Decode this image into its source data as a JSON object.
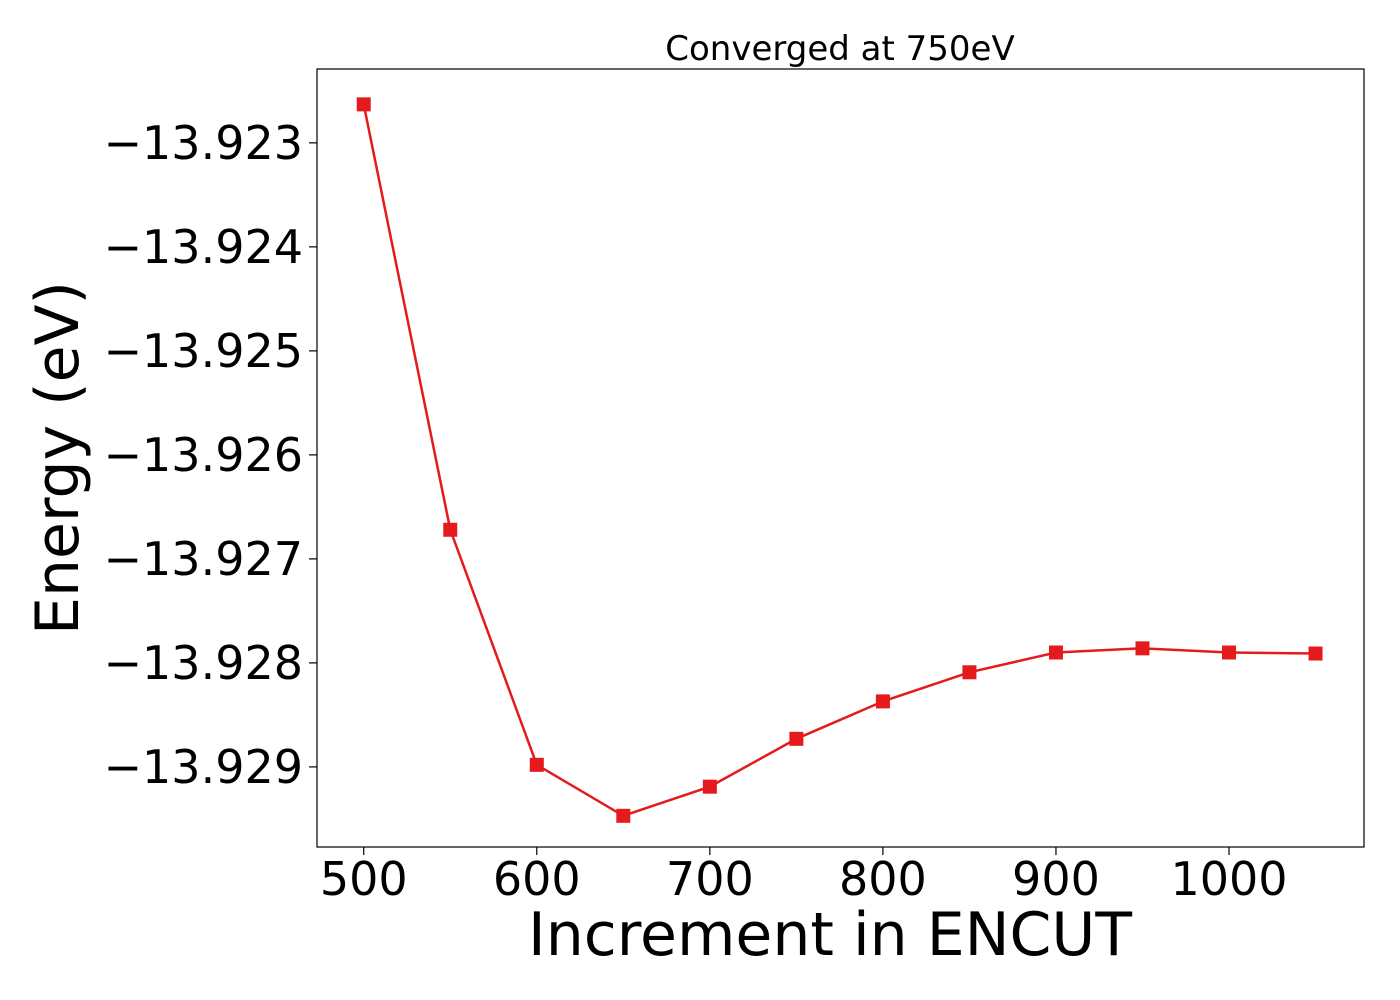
{
  "chart_data": {
    "type": "line",
    "title": "Converged at 750eV",
    "xlabel": "Increment in ENCUT",
    "ylabel": "Energy (eV)",
    "x": [
      500,
      550,
      600,
      650,
      700,
      750,
      800,
      850,
      900,
      950,
      1000,
      1050
    ],
    "series": [
      {
        "values": [
          -13.92263,
          -13.92672,
          -13.92898,
          -13.92947,
          -13.92919,
          -13.92873,
          -13.92837,
          -13.92809,
          -13.9279,
          -13.92786,
          -13.9279,
          -13.92791
        ],
        "color": "#e41a1c",
        "marker": "square"
      }
    ],
    "xlim": [
      473,
      1078
    ],
    "ylim": [
      -13.92977,
      -13.92229
    ],
    "xticks": [
      500,
      600,
      700,
      800,
      900,
      1000
    ],
    "xtick_labels": [
      "500",
      "600",
      "700",
      "800",
      "900",
      "1000"
    ],
    "yticks": [
      -13.923,
      -13.924,
      -13.925,
      -13.926,
      -13.927,
      -13.928,
      -13.929
    ],
    "ytick_labels": [
      "−13.923",
      "−13.924",
      "−13.925",
      "−13.926",
      "−13.927",
      "−13.928",
      "−13.929"
    ],
    "grid": false,
    "legend": "none"
  }
}
